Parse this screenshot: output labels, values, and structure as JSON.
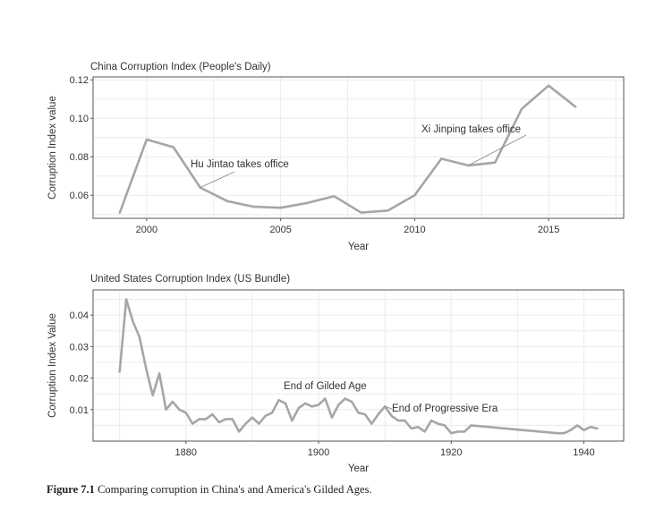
{
  "chart_data": [
    {
      "type": "line",
      "title": "China Corruption Index (People's Daily)",
      "xlabel": "Year",
      "ylabel": "Corruption Index value",
      "xlim": [
        1998,
        2017.8
      ],
      "ylim": [
        0.048,
        0.1215
      ],
      "xticks": [
        2000,
        2005,
        2010,
        2015
      ],
      "yticks": [
        0.06,
        0.08,
        0.1,
        0.12
      ],
      "ytick_labels": [
        "0.06",
        "0.08",
        "0.10",
        "0.12"
      ],
      "grid": true,
      "series": [
        {
          "x": [
            1999,
            2000,
            2001,
            2002,
            2003,
            2004,
            2005,
            2006,
            2007,
            2008,
            2009,
            2010,
            2011,
            2012,
            2013,
            2014,
            2015,
            2016
          ],
          "values": [
            0.051,
            0.089,
            0.085,
            0.064,
            0.057,
            0.054,
            0.0535,
            0.056,
            0.0595,
            0.051,
            0.052,
            0.06,
            0.079,
            0.0755,
            0.077,
            0.105,
            0.117,
            0.106
          ]
        }
      ],
      "annotations": [
        {
          "text": "Hu Jintao takes office",
          "x": 2002,
          "y": 0.064
        },
        {
          "text": "Xi Jinping takes office",
          "x": 2012,
          "y": 0.0755
        }
      ]
    },
    {
      "type": "line",
      "title": "United States Corruption Index (US Bundle)",
      "xlabel": "Year",
      "ylabel": "Corruption Index Value",
      "xlim": [
        1866,
        1946
      ],
      "ylim": [
        0.0,
        0.048
      ],
      "xticks": [
        1880,
        1900,
        1920,
        1940
      ],
      "yticks": [
        0.01,
        0.02,
        0.03,
        0.04
      ],
      "ytick_labels": [
        "0.01",
        "0.02",
        "0.03",
        "0.04"
      ],
      "grid": true,
      "series": [
        {
          "x": [
            1870,
            1871,
            1872,
            1873,
            1874,
            1875,
            1876,
            1877,
            1878,
            1879,
            1880,
            1881,
            1882,
            1883,
            1884,
            1885,
            1886,
            1887,
            1888,
            1889,
            1890,
            1891,
            1892,
            1893,
            1894,
            1895,
            1896,
            1897,
            1898,
            1899,
            1900,
            1901,
            1902,
            1903,
            1904,
            1905,
            1906,
            1907,
            1908,
            1909,
            1910,
            1911,
            1912,
            1913,
            1914,
            1915,
            1916,
            1917,
            1918,
            1919,
            1920,
            1921,
            1922,
            1923,
            1936,
            1937,
            1938,
            1939,
            1940,
            1941,
            1942
          ],
          "values": [
            0.022,
            0.045,
            0.038,
            0.033,
            0.023,
            0.0145,
            0.0215,
            0.01,
            0.0125,
            0.01,
            0.009,
            0.0055,
            0.007,
            0.007,
            0.0085,
            0.006,
            0.007,
            0.007,
            0.003,
            0.0055,
            0.0075,
            0.0055,
            0.008,
            0.009,
            0.013,
            0.012,
            0.0065,
            0.0105,
            0.012,
            0.011,
            0.0115,
            0.0135,
            0.0075,
            0.0115,
            0.0135,
            0.0125,
            0.009,
            0.0085,
            0.0055,
            0.0085,
            0.011,
            0.008,
            0.0065,
            0.0065,
            0.004,
            0.0045,
            0.003,
            0.0065,
            0.0055,
            0.005,
            0.0025,
            0.003,
            0.003,
            0.005,
            0.0025,
            0.0025,
            0.0035,
            0.005,
            0.0035,
            0.0045,
            0.004
          ]
        }
      ],
      "annotations": [
        {
          "text": "End of Gilded Age",
          "x": 1901,
          "y": 0.0135
        },
        {
          "text": "End of Progressive Era",
          "x": 1910,
          "y": 0.011
        }
      ]
    }
  ],
  "caption": {
    "label": "Figure 7.1",
    "text": "Comparing corruption in China's and America's Gilded Ages."
  },
  "colors": {
    "line": "#a6a6a6",
    "grid": "#ececec",
    "frame": "#555555",
    "text": "#333333"
  }
}
